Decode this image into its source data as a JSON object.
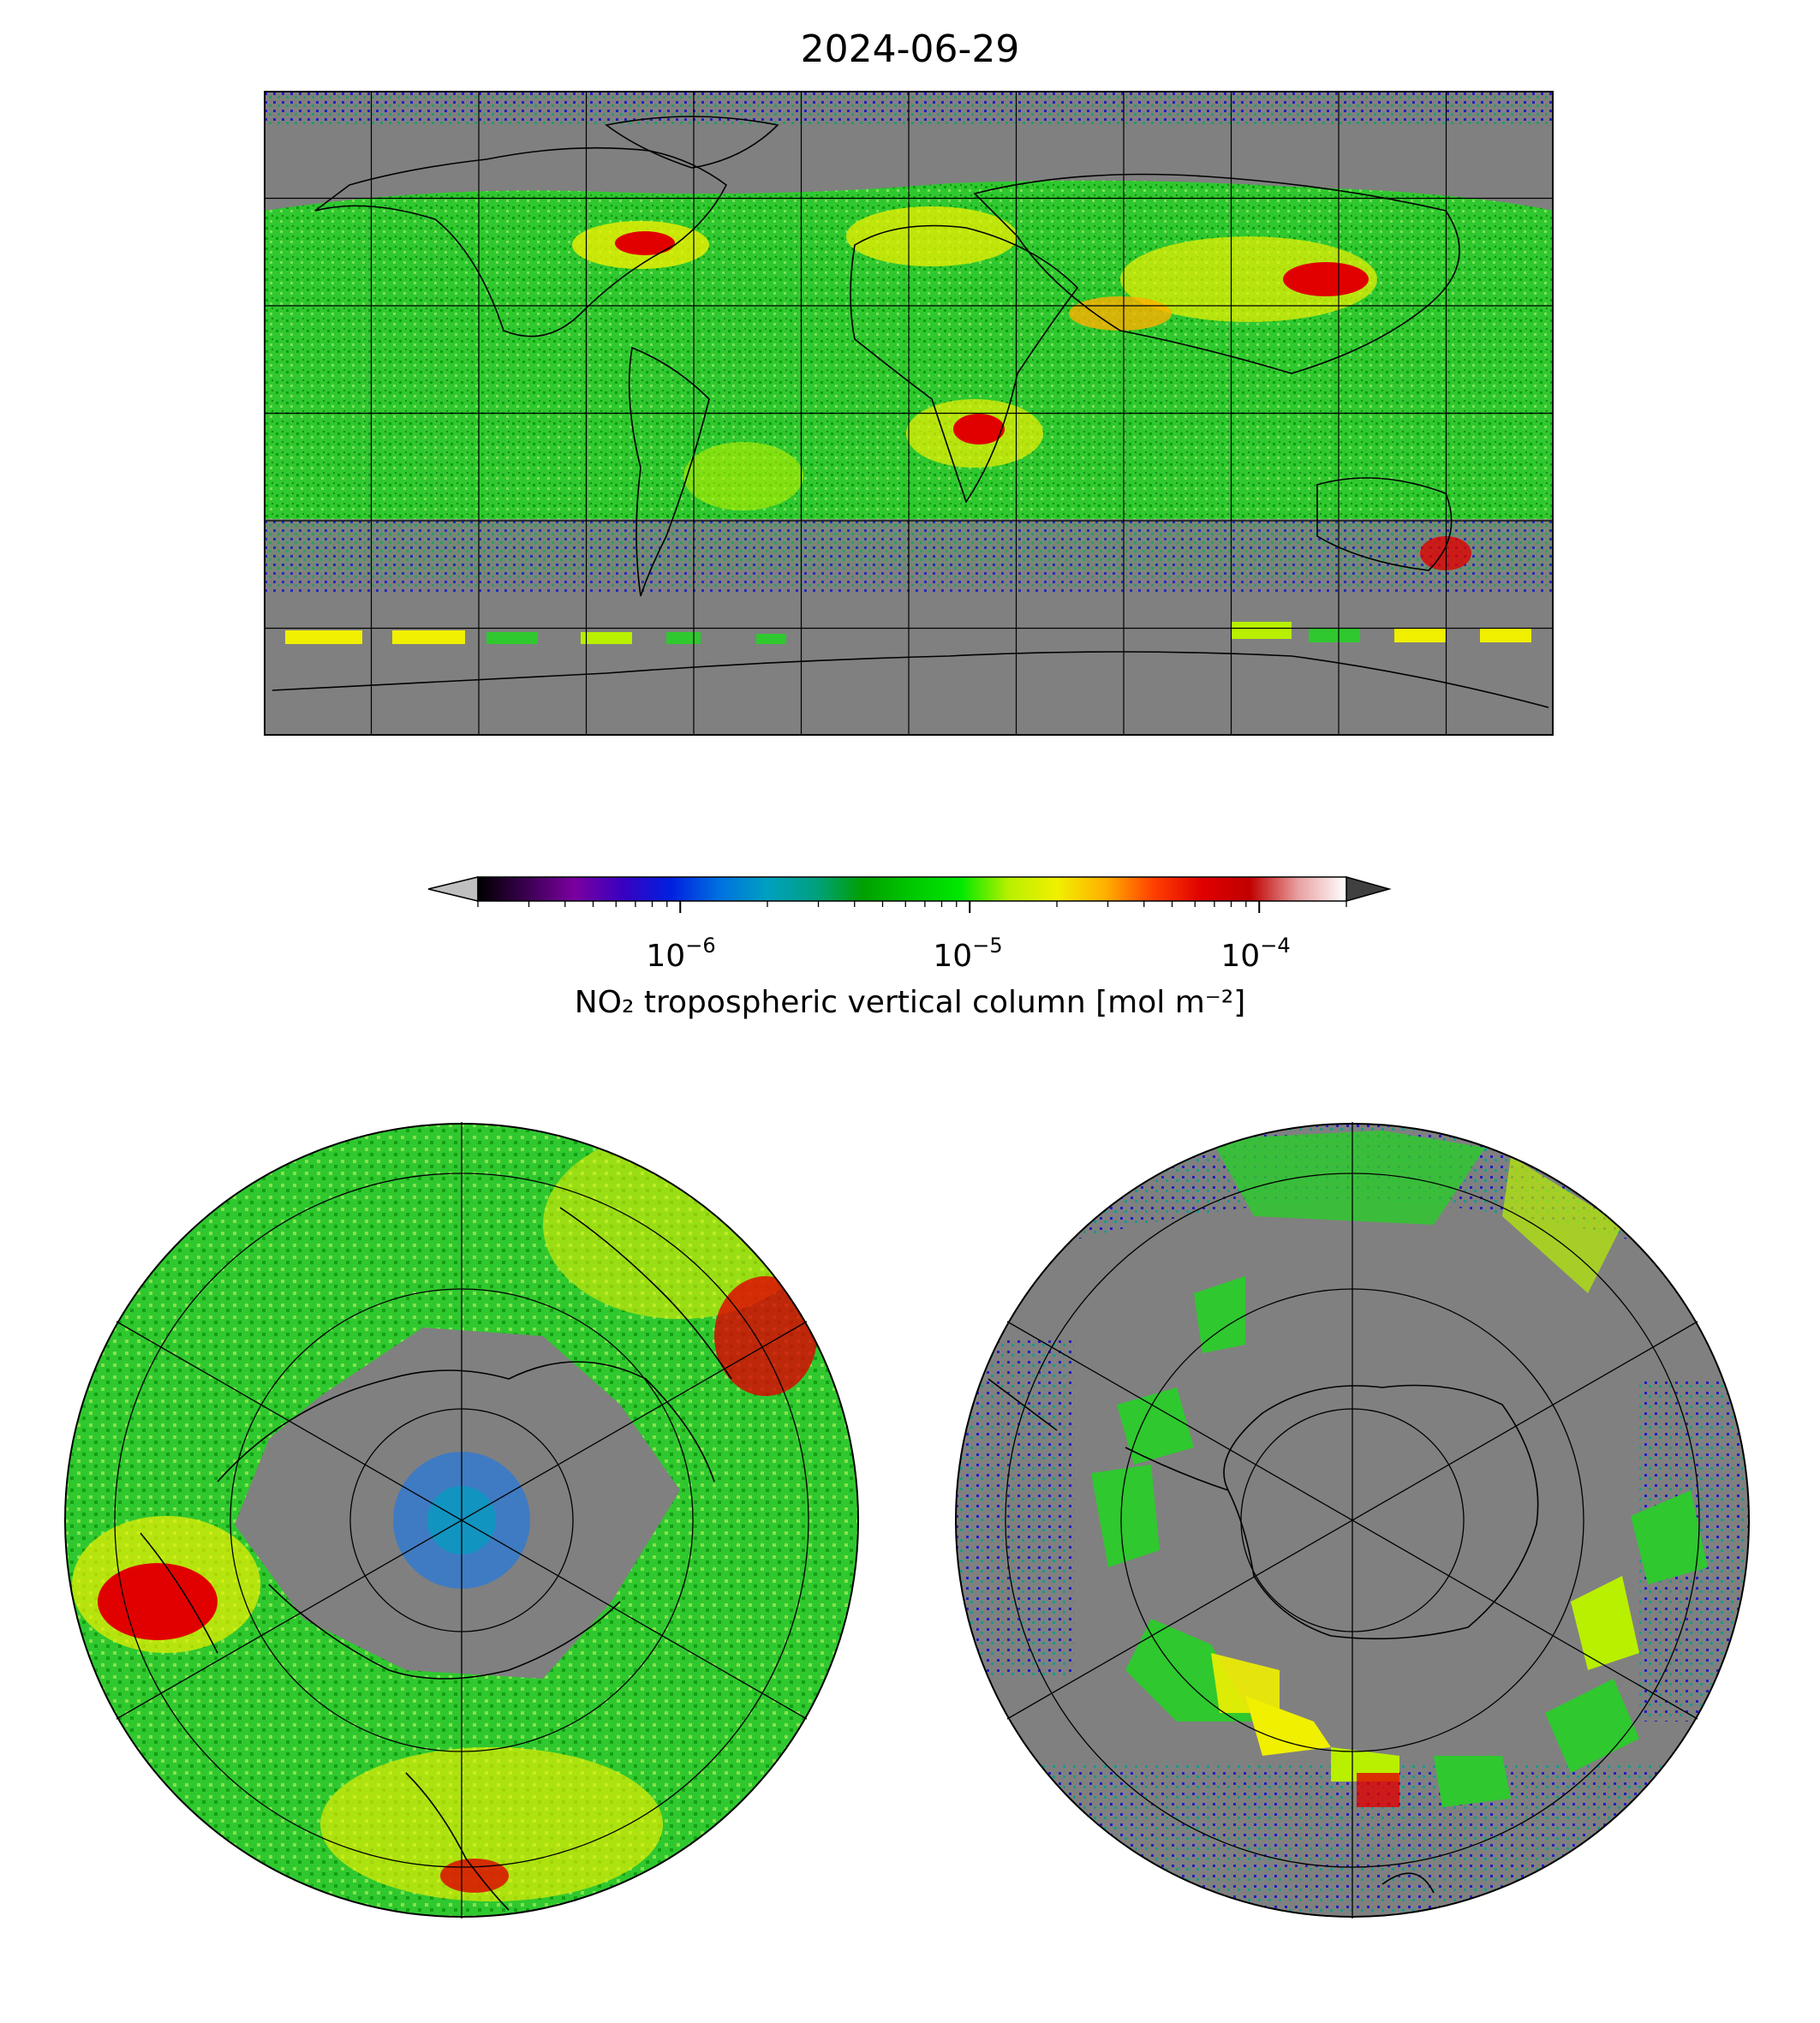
{
  "title": "2024-06-29",
  "colorbar": {
    "label": "NO₂ tropospheric vertical column [mol m⁻²]",
    "scale": "log",
    "range": [
      2e-07,
      0.0002
    ],
    "extend": "both",
    "ticks": [
      {
        "value": 1e-06,
        "base": "10",
        "exp": "−6"
      },
      {
        "value": 1e-05,
        "base": "10",
        "exp": "−5"
      },
      {
        "value": 0.0001,
        "base": "10",
        "exp": "−4"
      }
    ],
    "colors": [
      "#000000",
      "#3a0050",
      "#7a00a0",
      "#3a00c0",
      "#0020e0",
      "#0070e0",
      "#00a0c0",
      "#00a080",
      "#00a000",
      "#00c800",
      "#00e800",
      "#b8f000",
      "#f0f000",
      "#ffb000",
      "#ff4000",
      "#e00000",
      "#c00000",
      "#e8a0a0",
      "#ffffff"
    ],
    "under_color": "#c0c0c0",
    "over_color": "#404040"
  },
  "maps": {
    "global": {
      "projection": "PlateCarree",
      "gridlines": "30 degree",
      "missing_color": "#808080"
    },
    "north": {
      "projection": "NorthPolarStereo"
    },
    "south": {
      "projection": "SouthPolarStereo"
    }
  }
}
